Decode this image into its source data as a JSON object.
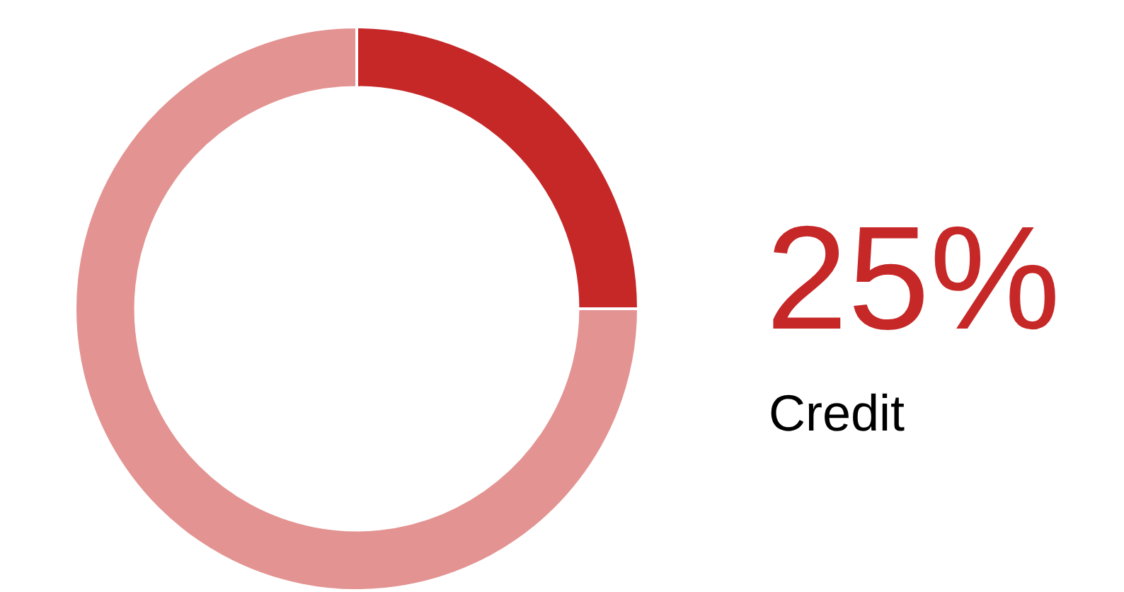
{
  "chart_data": {
    "type": "donut",
    "categories": [
      "Credit",
      null
    ],
    "values": [
      25,
      75
    ],
    "colors": [
      "#c62828",
      "#e39391"
    ],
    "value_labels": [
      "25%",
      null
    ],
    "legend": false
  }
}
